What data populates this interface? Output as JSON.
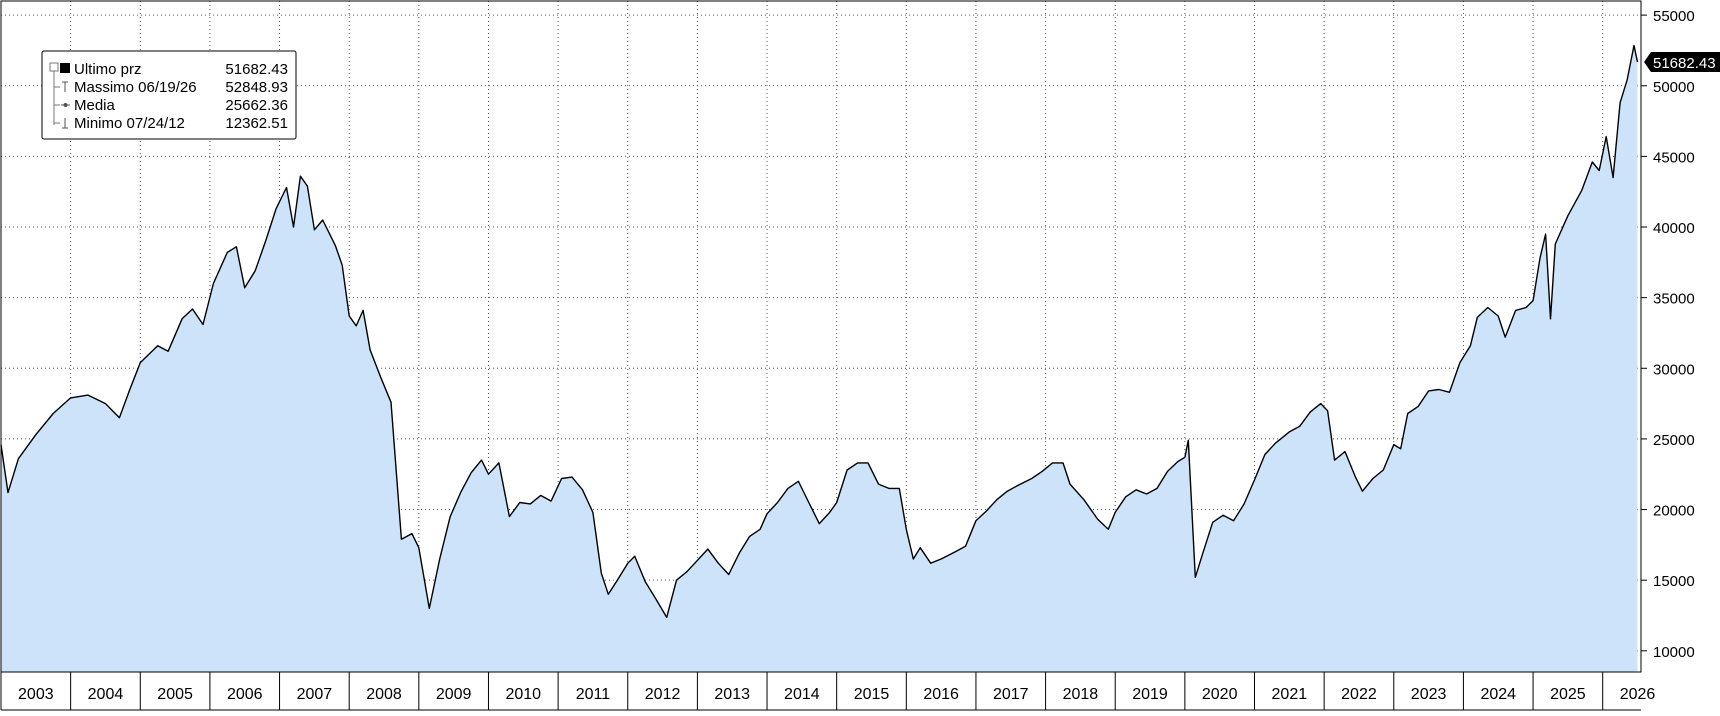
{
  "chart_data": {
    "type": "area",
    "title": "",
    "xlabel": "",
    "ylabel": "",
    "x_labels": [
      "2003",
      "2004",
      "2005",
      "2006",
      "2007",
      "2008",
      "2009",
      "2010",
      "2011",
      "2012",
      "2013",
      "2014",
      "2015",
      "2016",
      "2017",
      "2018",
      "2019",
      "2020",
      "2021",
      "2022",
      "2023",
      "2024",
      "2025",
      "2026"
    ],
    "x_range": [
      2003.0,
      2026.55
    ],
    "ylim": [
      8500,
      56000
    ],
    "y_ticks": [
      10000,
      15000,
      20000,
      25000,
      30000,
      35000,
      40000,
      45000,
      50000,
      55000
    ],
    "y_tick_labels": [
      "10000",
      "15000",
      "20000",
      "25000",
      "30000",
      "35000",
      "40000",
      "45000",
      "50000",
      "55000"
    ],
    "grid": true,
    "grid_style": "dotted",
    "area_color": "#cce3fa",
    "line_color": "#000000",
    "axis_side": "right",
    "last_value_label": "51682.43",
    "last_value": 51682.43,
    "legend": {
      "placement": "top-left",
      "entries": [
        {
          "label": "Ultimo prz",
          "value": "51682.43"
        },
        {
          "label": "Massimo 06/19/26",
          "value": "52848.93"
        },
        {
          "label": "Media",
          "value": "25662.36"
        },
        {
          "label": "Minimo 07/24/12",
          "value": "12362.51"
        }
      ]
    },
    "series": [
      {
        "values": [
          [
            2003.0,
            24600
          ],
          [
            2003.1,
            21200
          ],
          [
            2003.25,
            23600
          ],
          [
            2003.5,
            25300
          ],
          [
            2003.75,
            26800
          ],
          [
            2004.0,
            27900
          ],
          [
            2004.25,
            28100
          ],
          [
            2004.5,
            27500
          ],
          [
            2004.7,
            26500
          ],
          [
            2004.85,
            28500
          ],
          [
            2005.0,
            30400
          ],
          [
            2005.25,
            31600
          ],
          [
            2005.4,
            31200
          ],
          [
            2005.6,
            33500
          ],
          [
            2005.75,
            34200
          ],
          [
            2005.9,
            33100
          ],
          [
            2006.05,
            36000
          ],
          [
            2006.25,
            38200
          ],
          [
            2006.38,
            38600
          ],
          [
            2006.5,
            35700
          ],
          [
            2006.65,
            36900
          ],
          [
            2006.8,
            39000
          ],
          [
            2006.95,
            41300
          ],
          [
            2007.1,
            42800
          ],
          [
            2007.2,
            40000
          ],
          [
            2007.3,
            43600
          ],
          [
            2007.4,
            42900
          ],
          [
            2007.5,
            39800
          ],
          [
            2007.62,
            40500
          ],
          [
            2007.8,
            38700
          ],
          [
            2007.9,
            37300
          ],
          [
            2008.0,
            33700
          ],
          [
            2008.1,
            33000
          ],
          [
            2008.2,
            34100
          ],
          [
            2008.3,
            31300
          ],
          [
            2008.45,
            29400
          ],
          [
            2008.6,
            27600
          ],
          [
            2008.75,
            17900
          ],
          [
            2008.9,
            18300
          ],
          [
            2009.0,
            17300
          ],
          [
            2009.15,
            13000
          ],
          [
            2009.3,
            16500
          ],
          [
            2009.45,
            19500
          ],
          [
            2009.6,
            21200
          ],
          [
            2009.75,
            22600
          ],
          [
            2009.9,
            23500
          ],
          [
            2010.0,
            22500
          ],
          [
            2010.15,
            23300
          ],
          [
            2010.3,
            19500
          ],
          [
            2010.45,
            20500
          ],
          [
            2010.6,
            20400
          ],
          [
            2010.75,
            21000
          ],
          [
            2010.9,
            20600
          ],
          [
            2011.05,
            22200
          ],
          [
            2011.2,
            22300
          ],
          [
            2011.35,
            21400
          ],
          [
            2011.5,
            19800
          ],
          [
            2011.62,
            15500
          ],
          [
            2011.72,
            14000
          ],
          [
            2011.85,
            15000
          ],
          [
            2012.0,
            16200
          ],
          [
            2012.1,
            16700
          ],
          [
            2012.25,
            14900
          ],
          [
            2012.4,
            13700
          ],
          [
            2012.56,
            12362
          ],
          [
            2012.7,
            15000
          ],
          [
            2012.85,
            15600
          ],
          [
            2013.0,
            16400
          ],
          [
            2013.15,
            17200
          ],
          [
            2013.3,
            16200
          ],
          [
            2013.45,
            15400
          ],
          [
            2013.6,
            16900
          ],
          [
            2013.75,
            18100
          ],
          [
            2013.9,
            18600
          ],
          [
            2014.0,
            19700
          ],
          [
            2014.15,
            20500
          ],
          [
            2014.3,
            21500
          ],
          [
            2014.45,
            22000
          ],
          [
            2014.6,
            20500
          ],
          [
            2014.75,
            19000
          ],
          [
            2014.9,
            19800
          ],
          [
            2015.0,
            20500
          ],
          [
            2015.15,
            22800
          ],
          [
            2015.3,
            23300
          ],
          [
            2015.45,
            23300
          ],
          [
            2015.6,
            21800
          ],
          [
            2015.75,
            21500
          ],
          [
            2015.9,
            21500
          ],
          [
            2016.0,
            18600
          ],
          [
            2016.1,
            16500
          ],
          [
            2016.2,
            17300
          ],
          [
            2016.35,
            16200
          ],
          [
            2016.5,
            16500
          ],
          [
            2016.7,
            17000
          ],
          [
            2016.85,
            17400
          ],
          [
            2017.0,
            19200
          ],
          [
            2017.15,
            19900
          ],
          [
            2017.3,
            20700
          ],
          [
            2017.45,
            21300
          ],
          [
            2017.6,
            21700
          ],
          [
            2017.8,
            22200
          ],
          [
            2017.95,
            22700
          ],
          [
            2018.1,
            23300
          ],
          [
            2018.25,
            23300
          ],
          [
            2018.35,
            21800
          ],
          [
            2018.55,
            20700
          ],
          [
            2018.75,
            19300
          ],
          [
            2018.9,
            18600
          ],
          [
            2019.0,
            19800
          ],
          [
            2019.15,
            20900
          ],
          [
            2019.3,
            21400
          ],
          [
            2019.45,
            21100
          ],
          [
            2019.6,
            21500
          ],
          [
            2019.75,
            22700
          ],
          [
            2019.9,
            23400
          ],
          [
            2020.0,
            23700
          ],
          [
            2020.05,
            24900
          ],
          [
            2020.08,
            22000
          ],
          [
            2020.15,
            15200
          ],
          [
            2020.25,
            16800
          ],
          [
            2020.4,
            19100
          ],
          [
            2020.55,
            19600
          ],
          [
            2020.7,
            19200
          ],
          [
            2020.85,
            20400
          ],
          [
            2021.0,
            22100
          ],
          [
            2021.15,
            23900
          ],
          [
            2021.3,
            24700
          ],
          [
            2021.5,
            25500
          ],
          [
            2021.65,
            25900
          ],
          [
            2021.8,
            26900
          ],
          [
            2021.95,
            27500
          ],
          [
            2022.05,
            27000
          ],
          [
            2022.15,
            23500
          ],
          [
            2022.3,
            24100
          ],
          [
            2022.45,
            22300
          ],
          [
            2022.55,
            21300
          ],
          [
            2022.7,
            22200
          ],
          [
            2022.85,
            22800
          ],
          [
            2023.0,
            24600
          ],
          [
            2023.1,
            24300
          ],
          [
            2023.2,
            26800
          ],
          [
            2023.35,
            27300
          ],
          [
            2023.5,
            28400
          ],
          [
            2023.65,
            28500
          ],
          [
            2023.8,
            28300
          ],
          [
            2023.95,
            30400
          ],
          [
            2024.1,
            31600
          ],
          [
            2024.2,
            33600
          ],
          [
            2024.35,
            34300
          ],
          [
            2024.5,
            33700
          ],
          [
            2024.6,
            32200
          ],
          [
            2024.75,
            34100
          ],
          [
            2024.9,
            34300
          ],
          [
            2025.0,
            34800
          ],
          [
            2025.1,
            37800
          ],
          [
            2025.18,
            39500
          ],
          [
            2025.25,
            33500
          ],
          [
            2025.32,
            38800
          ],
          [
            2025.5,
            40800
          ],
          [
            2025.7,
            42600
          ],
          [
            2025.85,
            44600
          ],
          [
            2025.95,
            44000
          ],
          [
            2026.05,
            46400
          ],
          [
            2026.15,
            43500
          ],
          [
            2026.25,
            48800
          ],
          [
            2026.35,
            50400
          ],
          [
            2026.45,
            52849
          ],
          [
            2026.5,
            51682.43
          ]
        ]
      }
    ]
  }
}
